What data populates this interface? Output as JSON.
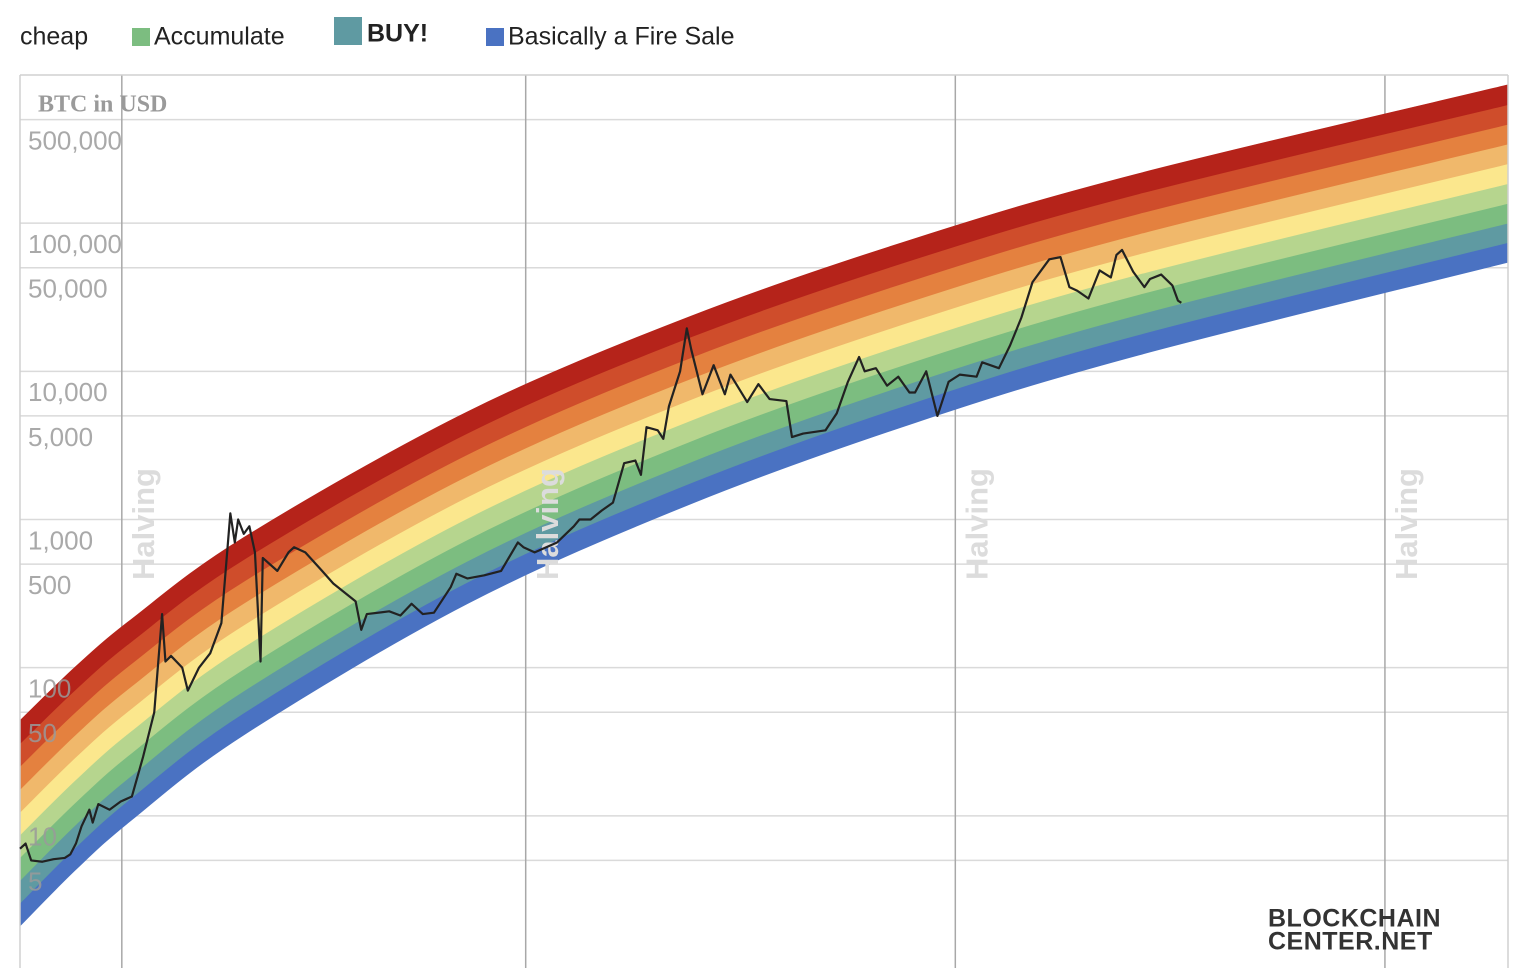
{
  "chart_data": {
    "type": "line",
    "y_label": "BTC in USD",
    "yscale": "log",
    "xlim": [
      2012.0,
      2025.3
    ],
    "ylim": [
      1,
      1000000
    ],
    "yticks": [
      5,
      10,
      50,
      100,
      500,
      {
        "value": 1000,
        "label": "1,000"
      },
      {
        "value": 5000,
        "label": "5,000"
      },
      {
        "value": 10000,
        "label": "10,000"
      },
      {
        "value": 50000,
        "label": "50,000"
      },
      {
        "value": 100000,
        "label": "100,000"
      },
      {
        "value": 500000,
        "label": "500,000"
      }
    ],
    "grid": true,
    "band_x": [
      2012.0,
      2012.5,
      2013,
      2014,
      2016,
      2018,
      2020,
      2022,
      2025.3
    ],
    "band_edges": [
      [
        1.81,
        4.35,
        9.42,
        35.2,
        271,
        1280,
        4510,
        12900,
        54500
      ],
      [
        2.58,
        6.17,
        13.3,
        49.5,
        378,
        1770,
        6190,
        17700,
        74000
      ],
      [
        3.67,
        8.75,
        18.8,
        69.7,
        525,
        2450,
        8510,
        24200,
        100000
      ],
      [
        5.24,
        12.4,
        26.7,
        97.9,
        731,
        3390,
        11700,
        33000,
        136000
      ],
      [
        7.46,
        17.6,
        37.7,
        138,
        1020,
        4680,
        16100,
        45200,
        185000
      ],
      [
        10.6,
        25.0,
        53.3,
        194,
        1420,
        6470,
        22100,
        61800,
        252000
      ],
      [
        15.1,
        35.5,
        75.3,
        272,
        1970,
        8950,
        30300,
        84500,
        342000
      ],
      [
        21.6,
        50.5,
        107,
        382,
        2750,
        12400,
        41700,
        116000,
        465000
      ],
      [
        30.8,
        71.6,
        151,
        537,
        3830,
        17100,
        57300,
        158000,
        631000
      ],
      [
        43.9,
        102,
        213,
        755,
        5330,
        23600,
        78700,
        216000,
        857000
      ]
    ],
    "bands": [
      {
        "name": "Basically a Fire Sale",
        "color": "#4a72c2"
      },
      {
        "name": "BUY!",
        "color": "#5f9aa2",
        "bold": true
      },
      {
        "name": "Accumulate",
        "color": "#7cbd80"
      },
      {
        "name": "cheap",
        "color": "#b6d58e"
      },
      {
        "color": "#fbe78d"
      },
      {
        "color": "#f0b86b"
      },
      {
        "color": "#e4813f"
      },
      {
        "color": "#cf4d2b"
      },
      {
        "color": "#b5231a"
      }
    ],
    "series": [
      {
        "color": "#222222",
        "x": [
          2012.0,
          2012.05,
          2012.1,
          2012.2,
          2012.3,
          2012.4,
          2012.45,
          2012.5,
          2012.55,
          2012.62,
          2012.65,
          2012.7,
          2012.8,
          2012.9,
          2013.0,
          2013.1,
          2013.2,
          2013.27,
          2013.3,
          2013.35,
          2013.45,
          2013.5,
          2013.6,
          2013.7,
          2013.8,
          2013.88,
          2013.92,
          2013.95,
          2014.0,
          2014.05,
          2014.1,
          2014.15,
          2014.17,
          2014.3,
          2014.4,
          2014.45,
          2014.55,
          2014.7,
          2014.8,
          2015.0,
          2015.05,
          2015.1,
          2015.3,
          2015.4,
          2015.5,
          2015.6,
          2015.7,
          2015.85,
          2015.9,
          2016.0,
          2016.15,
          2016.3,
          2016.45,
          2016.5,
          2016.6,
          2016.8,
          2016.95,
          2017.0,
          2017.1,
          2017.2,
          2017.3,
          2017.4,
          2017.5,
          2017.55,
          2017.6,
          2017.7,
          2017.75,
          2017.8,
          2017.9,
          2017.96,
          2018.0,
          2018.1,
          2018.2,
          2018.3,
          2018.35,
          2018.5,
          2018.6,
          2018.7,
          2018.85,
          2018.9,
          2019.0,
          2019.2,
          2019.3,
          2019.4,
          2019.5,
          2019.55,
          2019.65,
          2019.75,
          2019.85,
          2019.95,
          2020.0,
          2020.1,
          2020.2,
          2020.3,
          2020.4,
          2020.55,
          2020.6,
          2020.75,
          2020.85,
          2020.95,
          2021.05,
          2021.2,
          2021.3,
          2021.38,
          2021.45,
          2021.55,
          2021.65,
          2021.75,
          2021.8,
          2021.85,
          2021.95,
          2022.05,
          2022.1,
          2022.2,
          2022.3,
          2022.35,
          2022.38
        ],
        "values": [
          6.0,
          6.5,
          5.0,
          4.9,
          5.1,
          5.2,
          5.5,
          6.5,
          8.5,
          11,
          9,
          12,
          11,
          12.5,
          13.5,
          25,
          50,
          230,
          110,
          120,
          100,
          70,
          100,
          125,
          200,
          1100,
          700,
          1000,
          800,
          900,
          600,
          110,
          550,
          450,
          600,
          650,
          600,
          450,
          370,
          280,
          180,
          230,
          240,
          225,
          270,
          230,
          235,
          350,
          430,
          400,
          420,
          450,
          700,
          650,
          600,
          700,
          900,
          1000,
          1000,
          1150,
          1300,
          2400,
          2500,
          2000,
          4200,
          4000,
          3500,
          5800,
          10000,
          19500,
          14000,
          7000,
          11000,
          7000,
          9500,
          6200,
          8200,
          6500,
          6300,
          3600,
          3800,
          4000,
          5200,
          8500,
          12500,
          10000,
          10500,
          8000,
          9200,
          7200,
          7200,
          10000,
          5000,
          8500,
          9500,
          9200,
          11500,
          10500,
          15000,
          23000,
          40000,
          57000,
          59000,
          37000,
          35000,
          31000,
          48000,
          43000,
          61000,
          66000,
          47000,
          37000,
          42000,
          45000,
          38000,
          30000,
          29000
        ]
      }
    ],
    "annotations": [
      {
        "text": "Halving",
        "x": 2012.91
      },
      {
        "text": "Halving",
        "x": 2016.52
      },
      {
        "text": "Halving",
        "x": 2020.36
      },
      {
        "text": "Halving",
        "x": 2024.2
      }
    ],
    "logo": {
      "line1": "BLOCKCHAIN",
      "line2": "CENTER.NET"
    }
  }
}
